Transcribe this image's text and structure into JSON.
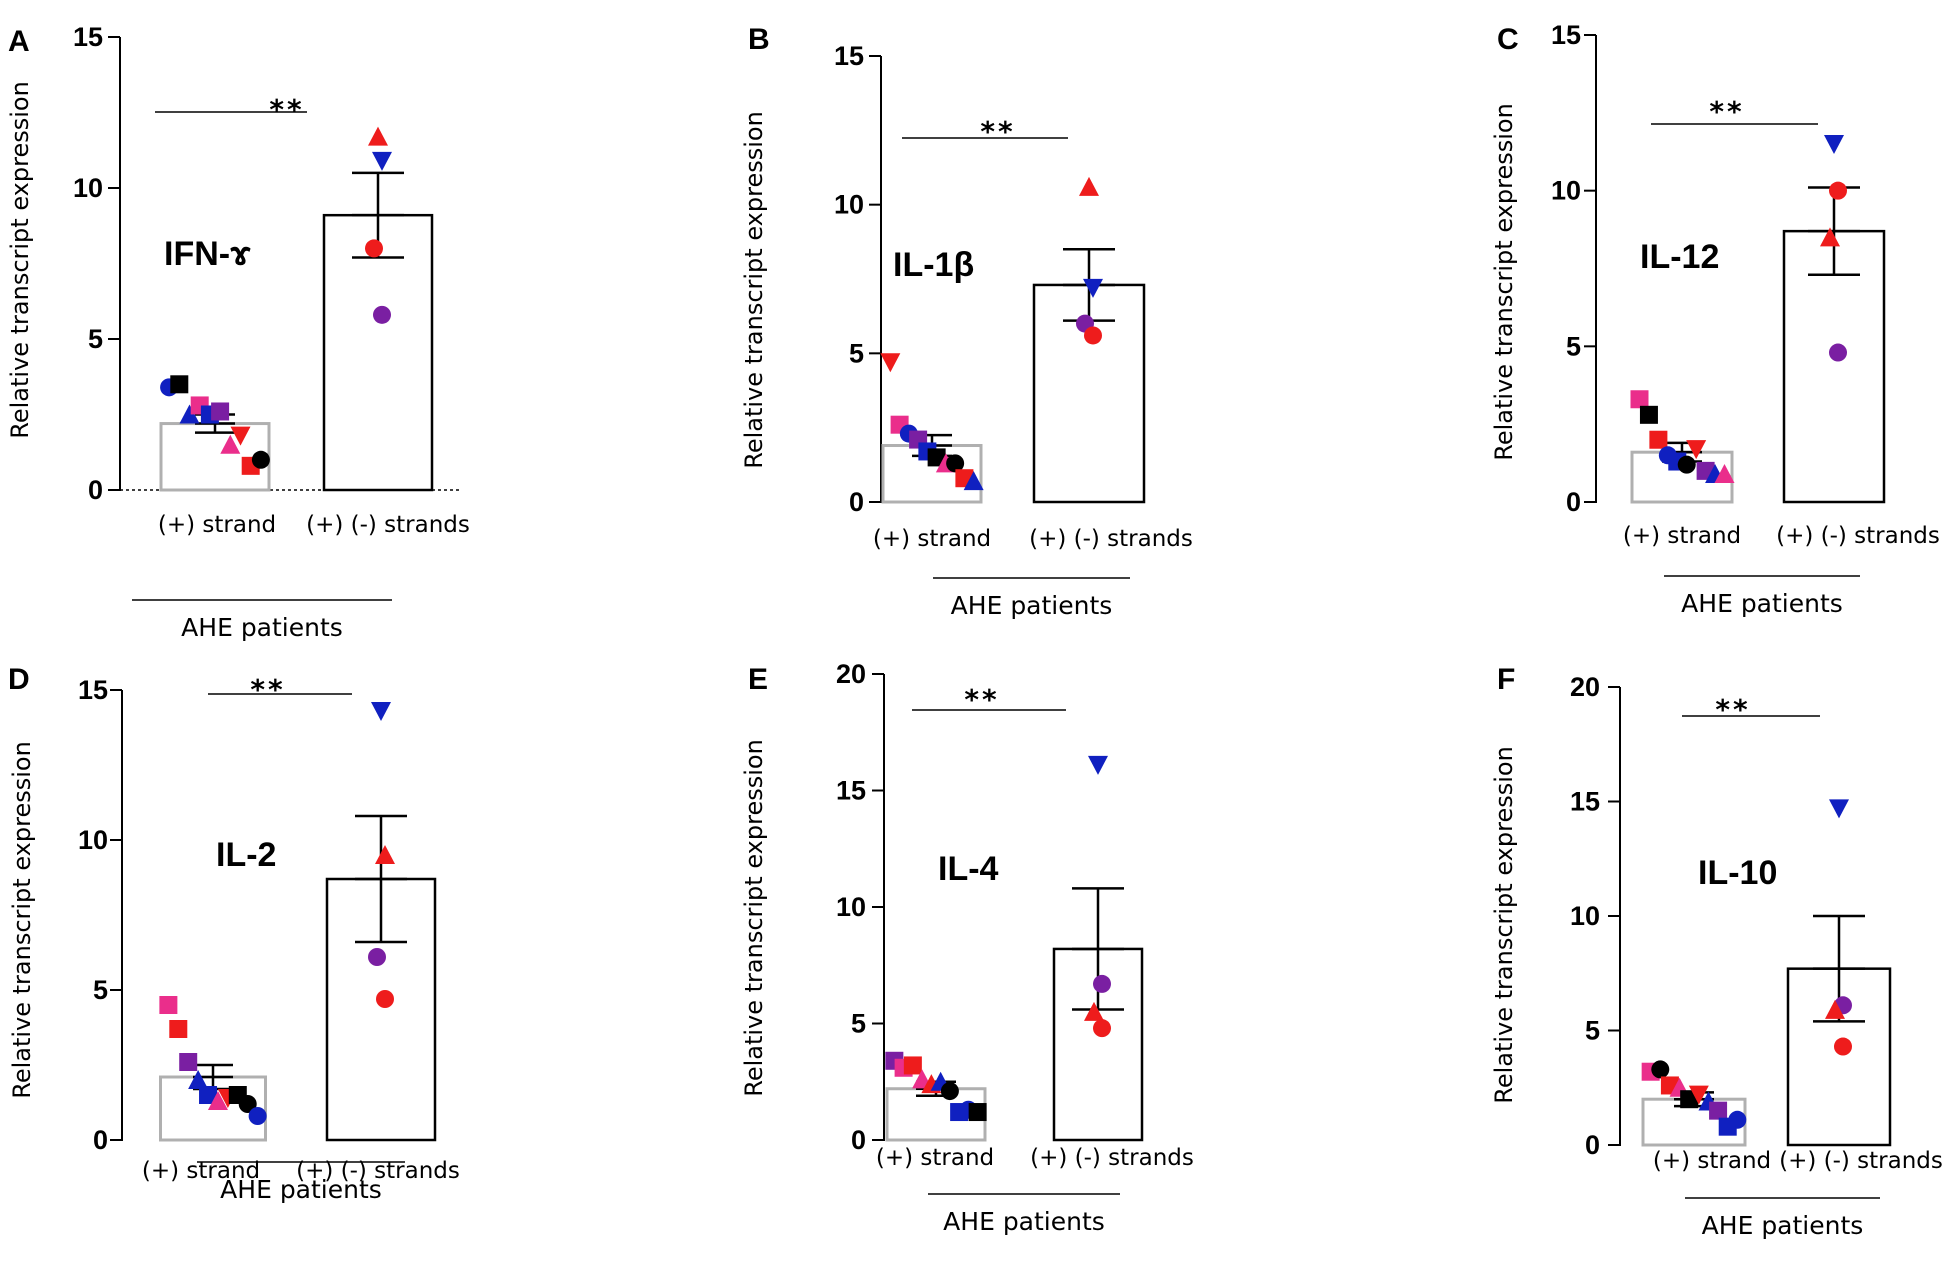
{
  "colors": {
    "black": "#000000",
    "red": "#ee1c1c",
    "blue": "#1020c0",
    "purple": "#7a1fa2",
    "pink": "#ea2e8b",
    "bar1_edge": "#b0b0b0",
    "bar2_edge": "#000000"
  },
  "chart_data": [
    {
      "panel": "A",
      "type": "bar",
      "title": "IFN-ɤ",
      "ylabel": "Relative transcript expression",
      "group_label": "AHE patients",
      "categories": [
        "(+) strand",
        "(+) (-) strands"
      ],
      "ylim": [
        0,
        15
      ],
      "yticks": [
        0,
        5,
        10,
        15
      ],
      "ytick_labels": [
        "0",
        "5",
        "10",
        "15"
      ],
      "significance": "**",
      "series": [
        {
          "name": "(+) strand",
          "mean": 2.2,
          "sem": 0.3,
          "points": [
            {
              "v": 3.4,
              "shape": "circle",
              "color": "blue"
            },
            {
              "v": 3.5,
              "shape": "square",
              "color": "black"
            },
            {
              "v": 2.5,
              "shape": "triangle",
              "color": "blue"
            },
            {
              "v": 2.8,
              "shape": "square",
              "color": "pink"
            },
            {
              "v": 2.5,
              "shape": "square",
              "color": "blue"
            },
            {
              "v": 2.6,
              "shape": "square",
              "color": "purple"
            },
            {
              "v": 1.5,
              "shape": "triangle",
              "color": "pink"
            },
            {
              "v": 1.8,
              "shape": "triangle-down",
              "color": "red"
            },
            {
              "v": 0.8,
              "shape": "square",
              "color": "red"
            },
            {
              "v": 1.0,
              "shape": "circle",
              "color": "black"
            }
          ]
        },
        {
          "name": "(+) (-) strands",
          "mean": 9.1,
          "sem": 1.4,
          "points": [
            {
              "v": 11.7,
              "shape": "triangle",
              "color": "red"
            },
            {
              "v": 10.9,
              "shape": "triangle-down",
              "color": "blue"
            },
            {
              "v": 8.0,
              "shape": "circle",
              "color": "red"
            },
            {
              "v": 5.8,
              "shape": "circle",
              "color": "purple"
            }
          ]
        }
      ]
    },
    {
      "panel": "B",
      "type": "bar",
      "title": "IL-1β",
      "ylabel": "Relative transcript expression",
      "group_label": "AHE patients",
      "categories": [
        "(+) strand",
        "(+) (-) strands"
      ],
      "ylim": [
        0,
        15
      ],
      "yticks": [
        0,
        5,
        10,
        15
      ],
      "ytick_labels": [
        "0",
        "5",
        "10",
        "15"
      ],
      "significance": "**",
      "series": [
        {
          "name": "(+) strand",
          "mean": 1.9,
          "sem": 0.35,
          "points": [
            {
              "v": 4.7,
              "shape": "triangle-down",
              "color": "red"
            },
            {
              "v": 2.6,
              "shape": "square",
              "color": "pink"
            },
            {
              "v": 2.3,
              "shape": "circle",
              "color": "blue"
            },
            {
              "v": 2.1,
              "shape": "square",
              "color": "purple"
            },
            {
              "v": 1.7,
              "shape": "square",
              "color": "blue"
            },
            {
              "v": 1.5,
              "shape": "square",
              "color": "black"
            },
            {
              "v": 1.3,
              "shape": "triangle",
              "color": "pink"
            },
            {
              "v": 1.3,
              "shape": "circle",
              "color": "black"
            },
            {
              "v": 0.8,
              "shape": "square",
              "color": "red"
            },
            {
              "v": 0.7,
              "shape": "triangle",
              "color": "blue"
            }
          ]
        },
        {
          "name": "(+) (-) strands",
          "mean": 7.3,
          "sem": 1.2,
          "points": [
            {
              "v": 10.6,
              "shape": "triangle",
              "color": "red"
            },
            {
              "v": 7.2,
              "shape": "triangle-down",
              "color": "blue"
            },
            {
              "v": 6.0,
              "shape": "circle",
              "color": "purple"
            },
            {
              "v": 5.6,
              "shape": "circle",
              "color": "red"
            }
          ]
        }
      ]
    },
    {
      "panel": "C",
      "type": "bar",
      "title": "IL-12",
      "ylabel": "Relative transcript expression",
      "group_label": "AHE patients",
      "categories": [
        "(+) strand",
        "(+) (-) strands"
      ],
      "ylim": [
        0,
        15
      ],
      "yticks": [
        0,
        5,
        10,
        15
      ],
      "ytick_labels": [
        "0",
        "5",
        "10",
        "15"
      ],
      "significance": "**",
      "series": [
        {
          "name": "(+) strand",
          "mean": 1.6,
          "sem": 0.3,
          "points": [
            {
              "v": 3.3,
              "shape": "square",
              "color": "pink"
            },
            {
              "v": 2.8,
              "shape": "square",
              "color": "black"
            },
            {
              "v": 2.0,
              "shape": "square",
              "color": "red"
            },
            {
              "v": 1.5,
              "shape": "circle",
              "color": "blue"
            },
            {
              "v": 1.3,
              "shape": "square",
              "color": "blue"
            },
            {
              "v": 1.2,
              "shape": "circle",
              "color": "black"
            },
            {
              "v": 1.7,
              "shape": "triangle-down",
              "color": "red"
            },
            {
              "v": 1.0,
              "shape": "square",
              "color": "purple"
            },
            {
              "v": 0.9,
              "shape": "triangle",
              "color": "blue"
            },
            {
              "v": 0.9,
              "shape": "triangle",
              "color": "pink"
            }
          ]
        },
        {
          "name": "(+) (-) strands",
          "mean": 8.7,
          "sem": 1.4,
          "points": [
            {
              "v": 11.5,
              "shape": "triangle-down",
              "color": "blue"
            },
            {
              "v": 10.0,
              "shape": "circle",
              "color": "red"
            },
            {
              "v": 8.5,
              "shape": "triangle",
              "color": "red"
            },
            {
              "v": 4.8,
              "shape": "circle",
              "color": "purple"
            }
          ]
        }
      ]
    },
    {
      "panel": "D",
      "type": "bar",
      "title": "IL-2",
      "ylabel": "Relative transcript expression",
      "group_label": "AHE patients",
      "categories": [
        "(+) strand",
        "(+) (-) strands"
      ],
      "ylim": [
        0,
        15
      ],
      "yticks": [
        0,
        5,
        10,
        15
      ],
      "ytick_labels": [
        "0",
        "5",
        "10",
        "15"
      ],
      "significance": "**",
      "series": [
        {
          "name": "(+) strand",
          "mean": 2.1,
          "sem": 0.4,
          "points": [
            {
              "v": 4.5,
              "shape": "square",
              "color": "pink"
            },
            {
              "v": 3.7,
              "shape": "square",
              "color": "red"
            },
            {
              "v": 2.6,
              "shape": "square",
              "color": "purple"
            },
            {
              "v": 2.0,
              "shape": "triangle",
              "color": "blue"
            },
            {
              "v": 1.5,
              "shape": "square",
              "color": "blue"
            },
            {
              "v": 1.3,
              "shape": "triangle",
              "color": "pink"
            },
            {
              "v": 1.4,
              "shape": "triangle-down",
              "color": "red"
            },
            {
              "v": 1.5,
              "shape": "square",
              "color": "black"
            },
            {
              "v": 1.2,
              "shape": "circle",
              "color": "black"
            },
            {
              "v": 0.8,
              "shape": "circle",
              "color": "blue"
            }
          ]
        },
        {
          "name": "(+) (-) strands",
          "mean": 8.7,
          "sem": 2.1,
          "points": [
            {
              "v": 14.3,
              "shape": "triangle-down",
              "color": "blue"
            },
            {
              "v": 9.5,
              "shape": "triangle",
              "color": "red"
            },
            {
              "v": 6.1,
              "shape": "circle",
              "color": "purple"
            },
            {
              "v": 4.7,
              "shape": "circle",
              "color": "red"
            }
          ]
        }
      ]
    },
    {
      "panel": "E",
      "type": "bar",
      "title": "IL-4",
      "ylabel": "Relative transcript expression",
      "group_label": "AHE patients",
      "categories": [
        "(+) strand",
        "(+) (-) strands"
      ],
      "ylim": [
        0,
        20
      ],
      "yticks": [
        0,
        5,
        10,
        15,
        20
      ],
      "ytick_labels": [
        "0",
        "5",
        "10",
        "15",
        "20"
      ],
      "significance": "**",
      "series": [
        {
          "name": "(+) strand",
          "mean": 2.2,
          "sem": 0.3,
          "points": [
            {
              "v": 3.4,
              "shape": "square",
              "color": "purple"
            },
            {
              "v": 3.1,
              "shape": "square",
              "color": "pink"
            },
            {
              "v": 3.2,
              "shape": "square",
              "color": "red"
            },
            {
              "v": 2.6,
              "shape": "triangle",
              "color": "pink"
            },
            {
              "v": 2.4,
              "shape": "triangle",
              "color": "red"
            },
            {
              "v": 2.5,
              "shape": "triangle",
              "color": "blue"
            },
            {
              "v": 2.1,
              "shape": "circle",
              "color": "black"
            },
            {
              "v": 1.2,
              "shape": "square",
              "color": "blue"
            },
            {
              "v": 1.3,
              "shape": "circle",
              "color": "blue"
            },
            {
              "v": 1.2,
              "shape": "square",
              "color": "black"
            }
          ]
        },
        {
          "name": "(+) (-) strands",
          "mean": 8.2,
          "sem": 2.6,
          "points": [
            {
              "v": 16.1,
              "shape": "triangle-down",
              "color": "blue"
            },
            {
              "v": 6.7,
              "shape": "circle",
              "color": "purple"
            },
            {
              "v": 5.5,
              "shape": "triangle",
              "color": "red"
            },
            {
              "v": 4.8,
              "shape": "circle",
              "color": "red"
            }
          ]
        }
      ]
    },
    {
      "panel": "F",
      "type": "bar",
      "title": "IL-10",
      "ylabel": "Relative transcript expression",
      "group_label": "AHE patients",
      "categories": [
        "(+) strand",
        "(+) (-) strands"
      ],
      "ylim": [
        0,
        20
      ],
      "yticks": [
        0,
        5,
        10,
        15,
        20
      ],
      "ytick_labels": [
        "0",
        "5",
        "10",
        "15",
        "20"
      ],
      "significance": "**",
      "series": [
        {
          "name": "(+) strand",
          "mean": 2.0,
          "sem": 0.3,
          "points": [
            {
              "v": 3.2,
              "shape": "square",
              "color": "pink"
            },
            {
              "v": 3.3,
              "shape": "circle",
              "color": "black"
            },
            {
              "v": 2.6,
              "shape": "square",
              "color": "red"
            },
            {
              "v": 2.5,
              "shape": "triangle",
              "color": "pink"
            },
            {
              "v": 2.0,
              "shape": "square",
              "color": "black"
            },
            {
              "v": 2.2,
              "shape": "triangle-down",
              "color": "red"
            },
            {
              "v": 1.9,
              "shape": "triangle",
              "color": "blue"
            },
            {
              "v": 1.5,
              "shape": "square",
              "color": "purple"
            },
            {
              "v": 0.8,
              "shape": "square",
              "color": "blue"
            },
            {
              "v": 1.1,
              "shape": "circle",
              "color": "blue"
            }
          ]
        },
        {
          "name": "(+) (-) strands",
          "mean": 7.7,
          "sem": 2.3,
          "points": [
            {
              "v": 14.7,
              "shape": "triangle-down",
              "color": "blue"
            },
            {
              "v": 6.1,
              "shape": "circle",
              "color": "purple"
            },
            {
              "v": 5.9,
              "shape": "triangle",
              "color": "red"
            },
            {
              "v": 4.3,
              "shape": "circle",
              "color": "red"
            }
          ]
        }
      ]
    }
  ]
}
